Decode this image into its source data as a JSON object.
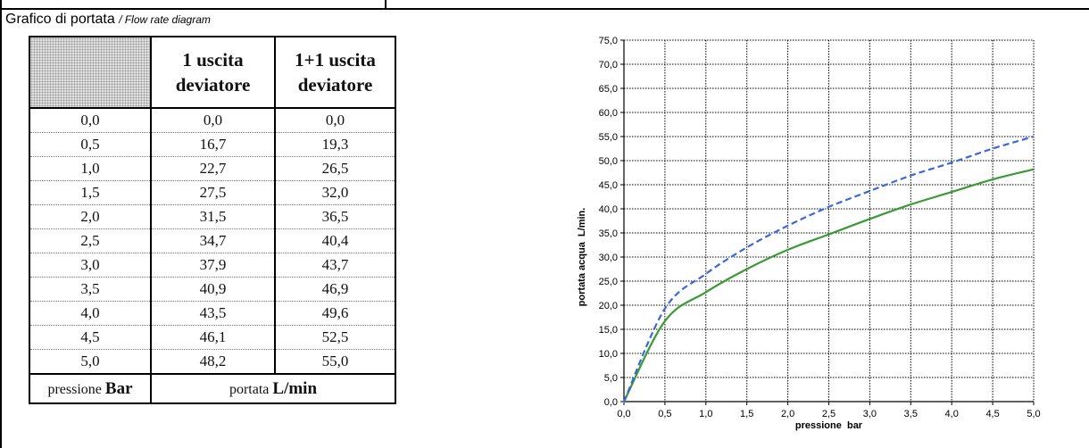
{
  "caption": {
    "it": "Grafico di portata",
    "en": "/ Flow rate diagram"
  },
  "table": {
    "headers": {
      "col1_line1": "1 uscita",
      "col1_line2": "deviatore",
      "col2_line1": "1+1 uscita",
      "col2_line2": "deviatore"
    },
    "rows": [
      [
        "0,0",
        "0,0",
        "0,0"
      ],
      [
        "0,5",
        "16,7",
        "19,3"
      ],
      [
        "1,0",
        "22,7",
        "26,5"
      ],
      [
        "1,5",
        "27,5",
        "32,0"
      ],
      [
        "2,0",
        "31,5",
        "36,5"
      ],
      [
        "2,5",
        "34,7",
        "40,4"
      ],
      [
        "3,0",
        "37,9",
        "43,7"
      ],
      [
        "3,5",
        "40,9",
        "46,9"
      ],
      [
        "4,0",
        "43,5",
        "49,6"
      ],
      [
        "4,5",
        "46,1",
        "52,5"
      ],
      [
        "5,0",
        "48,2",
        "55,0"
      ]
    ],
    "footer": {
      "pressure_word": "pressione",
      "pressure_unit": "Bar",
      "flow_word": "portata",
      "flow_unit": "L/min"
    }
  },
  "chart_data": {
    "type": "line",
    "xlabel": "pressione  bar",
    "ylabel": "portata acqua  L/min.",
    "xlim": [
      0,
      5
    ],
    "ylim": [
      0,
      75
    ],
    "x_ticks": [
      "0,0",
      "0,5",
      "1,0",
      "1,5",
      "2,0",
      "2,5",
      "3,0",
      "3,5",
      "4,0",
      "4,5",
      "5,0"
    ],
    "y_ticks": [
      "0,0",
      "5,0",
      "10,0",
      "15,0",
      "20,0",
      "25,0",
      "30,0",
      "35,0",
      "40,0",
      "45,0",
      "50,0",
      "55,0",
      "60,0",
      "65,0",
      "70,0",
      "75,0"
    ],
    "grid": true,
    "x": [
      0,
      0.5,
      1.0,
      1.5,
      2.0,
      2.5,
      3.0,
      3.5,
      4.0,
      4.5,
      5.0
    ],
    "series": [
      {
        "values": [
          0,
          16.7,
          22.7,
          27.5,
          31.5,
          34.7,
          37.9,
          40.9,
          43.5,
          46.1,
          48.2
        ],
        "color": "#3a9a35",
        "style": "solid"
      },
      {
        "values": [
          0,
          19.3,
          26.5,
          32.0,
          36.5,
          40.4,
          43.7,
          46.9,
          49.6,
          52.5,
          55.0
        ],
        "color": "#3b66dd",
        "style": "dashed"
      }
    ]
  }
}
